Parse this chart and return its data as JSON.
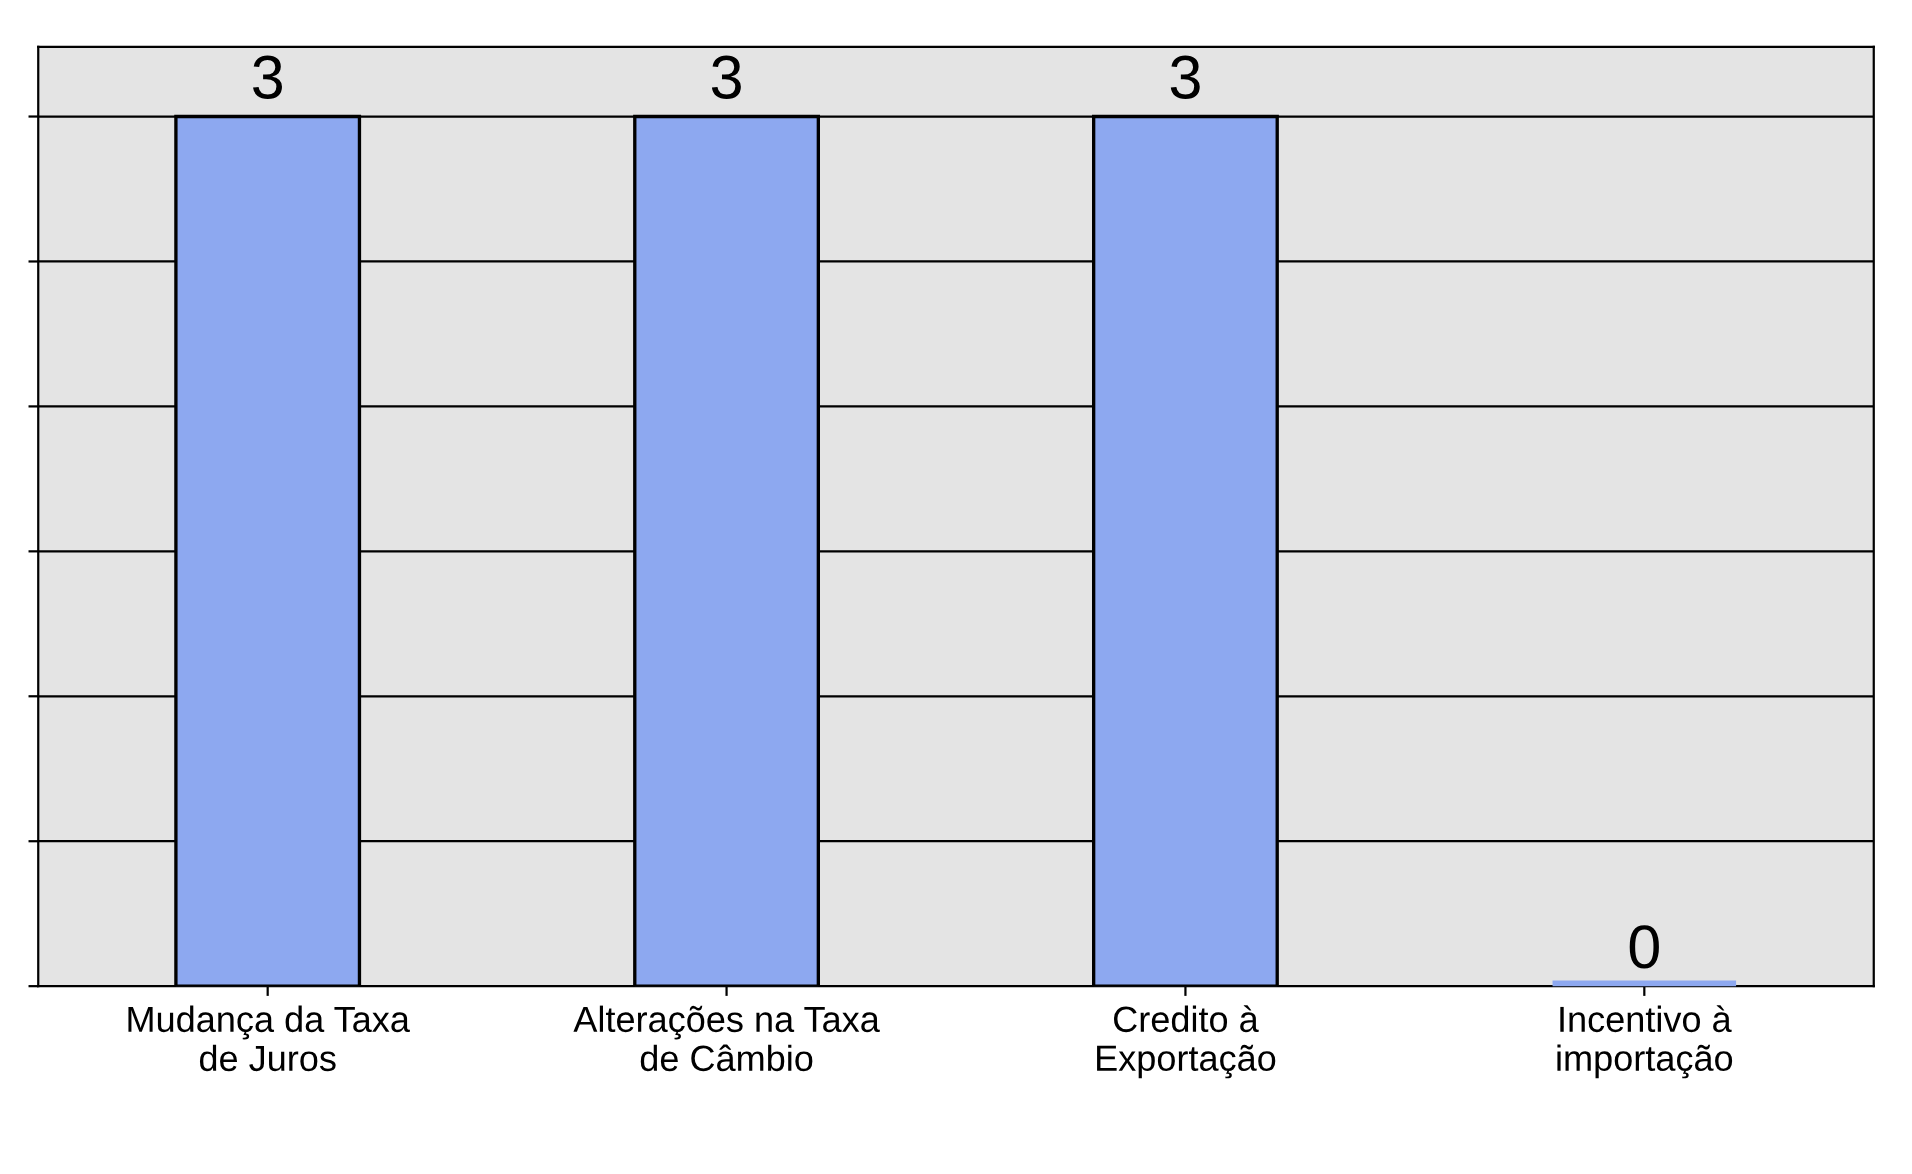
{
  "chart_data": {
    "type": "bar",
    "categories": [
      "Mudança da Taxa\nde Juros",
      "Alterações na Taxa\nde Câmbio",
      "Credito à\nExportação",
      "Incentivo à\nimportação"
    ],
    "values": [
      3,
      3,
      3,
      0
    ],
    "color": "#8da8f0",
    "data_labels": true,
    "ylim": [
      0,
      3
    ],
    "yticks": [
      {
        "value": 0,
        "label": null
      },
      {
        "value": 0.5,
        "label": null
      },
      {
        "value": 1,
        "label": null
      },
      {
        "value": 1.5,
        "label": null
      },
      {
        "value": 2,
        "label": null
      },
      {
        "value": 2.5,
        "label": null
      },
      {
        "value": 3,
        "label": null
      }
    ],
    "grid": "y"
  }
}
